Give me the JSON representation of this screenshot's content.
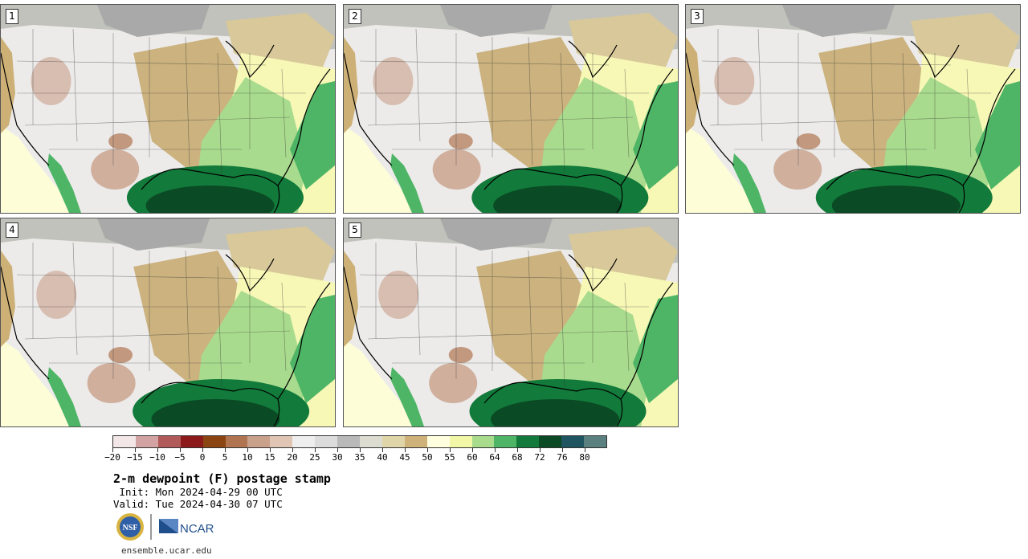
{
  "panels": [
    {
      "label": "1"
    },
    {
      "label": "2"
    },
    {
      "label": "3"
    },
    {
      "label": "4"
    },
    {
      "label": "5"
    }
  ],
  "colorbar": {
    "colors": [
      "#f2e6e6",
      "#d3a3a3",
      "#b15a5a",
      "#8c1a1a",
      "#8a4512",
      "#b07550",
      "#c9a08a",
      "#e0c5b5",
      "#eeeeee",
      "#dcdcdc",
      "#b9b9b9",
      "#dcdcd0",
      "#e0d5a8",
      "#cfb27a",
      "#ffffe0",
      "#f2f7a7",
      "#a8dc8c",
      "#4fb566",
      "#127a3a",
      "#0a4a24",
      "#1e5560",
      "#5a8080"
    ],
    "tick_labels": [
      "-20",
      "-15",
      "-10",
      "-5",
      "0",
      "5",
      "10",
      "15",
      "20",
      "25",
      "30",
      "35",
      "40",
      "45",
      "50",
      "55",
      "60",
      "64",
      "68",
      "72",
      "76",
      "80"
    ]
  },
  "title": "2-m dewpoint (F) postage stamp",
  "init": " Init: Mon 2024-04-29 00 UTC",
  "valid": "Valid: Tue 2024-04-30 07 UTC",
  "logos": {
    "nsf_text": "NSF",
    "ncar_text": "NCAR"
  },
  "footer_url": "ensemble.ucar.edu"
}
